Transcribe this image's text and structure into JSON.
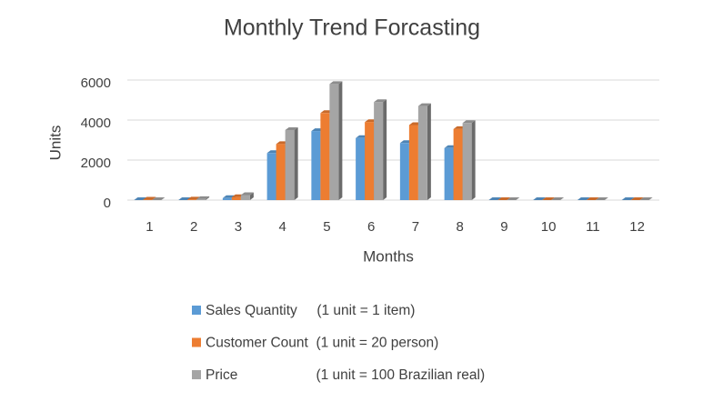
{
  "chart_data": {
    "type": "bar",
    "title": "Monthly Trend Forcasting",
    "x_label": "Months",
    "y_label": "Units",
    "categories": [
      "1",
      "2",
      "3",
      "4",
      "5",
      "6",
      "7",
      "8",
      "9",
      "10",
      "11",
      "12"
    ],
    "series": [
      {
        "name": "Sales Quantity     (1 unit = 1 item)",
        "color": "#5b9bd5",
        "values": [
          0,
          0,
          100,
          2350,
          3450,
          3100,
          2850,
          2600,
          0,
          0,
          0,
          0
        ]
      },
      {
        "name": "Customer Count  (1 unit = 20 person)",
        "color": "#ed7d31",
        "values": [
          20,
          30,
          150,
          2800,
          4350,
          3900,
          3750,
          3550,
          0,
          0,
          0,
          0
        ]
      },
      {
        "name": "Price                    (1 unit = 100 Brazilian real)",
        "color": "#a5a5a5",
        "values": [
          0,
          50,
          250,
          3500,
          5800,
          4900,
          4700,
          3850,
          0,
          0,
          0,
          0
        ]
      }
    ],
    "ylim": [
      0,
      6000
    ],
    "yticks": [
      0,
      2000,
      4000,
      6000
    ],
    "grid": true,
    "legend": "bottom"
  }
}
